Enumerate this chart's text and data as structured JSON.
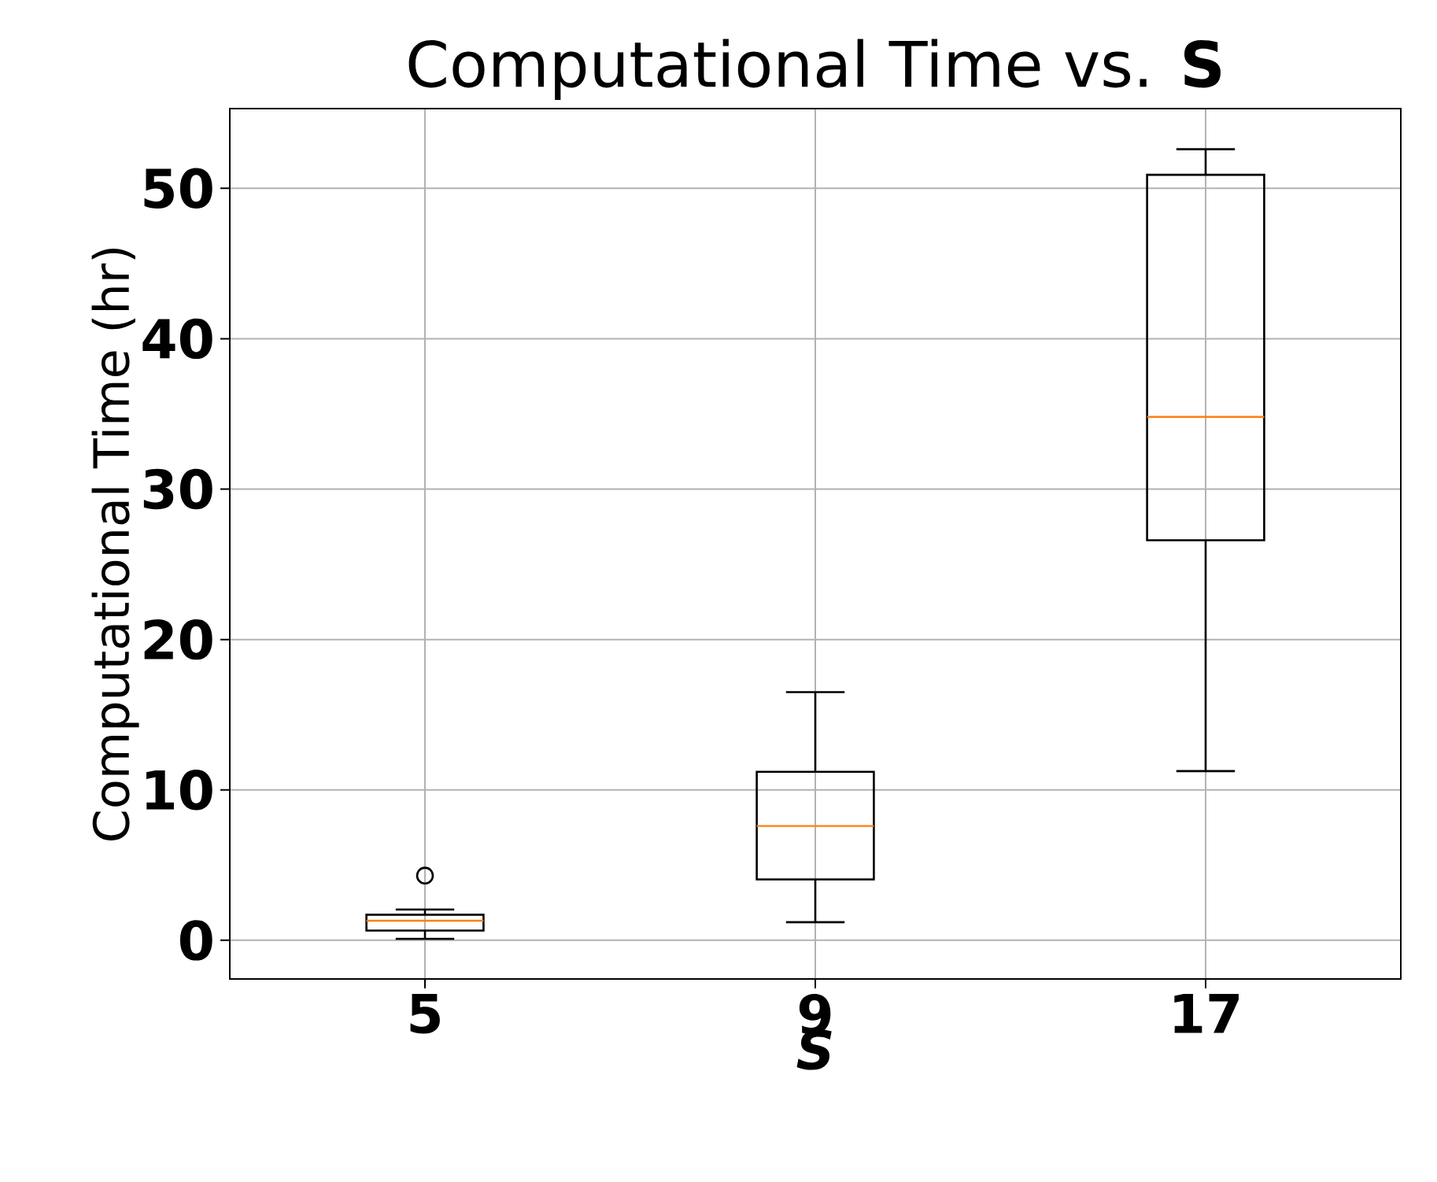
{
  "chart_data": {
    "type": "box",
    "title": "Computational Time vs. **S**",
    "xlabel": "S",
    "ylabel": "Computational Time (hr)",
    "categories": [
      "5",
      "9",
      "17"
    ],
    "boxes": [
      {
        "low": 0.1,
        "q1": 0.65,
        "median": 1.3,
        "q3": 1.7,
        "high": 2.05,
        "outliers": [
          4.3
        ]
      },
      {
        "low": 1.2,
        "q1": 4.05,
        "median": 7.6,
        "q3": 11.2,
        "high": 16.5
      },
      {
        "low": 11.25,
        "q1": 26.6,
        "median": 34.8,
        "q3": 50.9,
        "high": 52.6
      }
    ],
    "ylim": [
      -2.57,
      55.3
    ],
    "yticks": [
      0,
      10,
      20,
      30,
      40,
      50
    ],
    "grid": true,
    "marker": "circle"
  }
}
